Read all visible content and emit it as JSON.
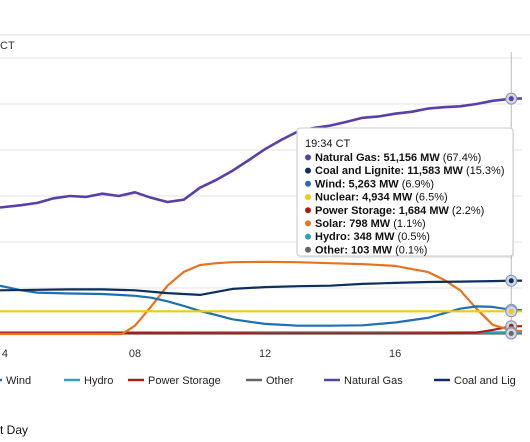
{
  "page": {
    "top_label": "CT",
    "footer": "t Day"
  },
  "tooltip": {
    "time": "19:34 CT",
    "rows": [
      {
        "name": "Natural Gas",
        "value": "51,156 MW",
        "pct": "(67.4%)",
        "color": "#5b3fa8"
      },
      {
        "name": "Coal and Lignite",
        "value": "11,583 MW",
        "pct": "(15.3%)",
        "color": "#0d2f5e"
      },
      {
        "name": "Wind",
        "value": "5,263 MW",
        "pct": "(6.9%)",
        "color": "#1f6fb4"
      },
      {
        "name": "Nuclear",
        "value": "4,934 MW",
        "pct": "(6.5%)",
        "color": "#f2c811"
      },
      {
        "name": "Power Storage",
        "value": "1,684 MW",
        "pct": "(2.2%)",
        "color": "#a3231c"
      },
      {
        "name": "Solar",
        "value": "798 MW",
        "pct": "(1.1%)",
        "color": "#e8731c"
      },
      {
        "name": "Hydro",
        "value": "348 MW",
        "pct": "(0.5%)",
        "color": "#2aa3b8"
      },
      {
        "name": "Other",
        "value": "103 MW",
        "pct": "(0.1%)",
        "color": "#666666"
      }
    ]
  },
  "chart_data": {
    "type": "line",
    "x_ticks": [
      "4",
      "08",
      "12",
      "16"
    ],
    "x_tick_values": [
      4,
      8,
      12,
      16
    ],
    "xlim": [
      3.85,
      19.9
    ],
    "ylim": [
      0,
      60000
    ],
    "grid": true,
    "legend_position": "bottom",
    "legend": [
      {
        "name": "Wind",
        "color": "#1f6fb4"
      },
      {
        "name": "Hydro",
        "color": "#2aa3b8"
      },
      {
        "name": "Power Storage",
        "color": "#a3231c"
      },
      {
        "name": "Other",
        "color": "#666666"
      },
      {
        "name": "Natural Gas",
        "color": "#5b3fa8"
      },
      {
        "name": "Coal and Lig",
        "color": "#0d2f5e"
      }
    ],
    "series": [
      {
        "name": "Natural Gas",
        "color": "#5b3fa8",
        "x": [
          3.85,
          4.5,
          5,
          5.5,
          6,
          6.5,
          7,
          7.5,
          8,
          8.5,
          9,
          9.5,
          10,
          10.5,
          11,
          11.5,
          12,
          12.5,
          13,
          13.5,
          14,
          14.5,
          15,
          15.5,
          16,
          16.5,
          17,
          17.5,
          18,
          18.5,
          19,
          19.57,
          19.9
        ],
        "y": [
          27500,
          28000,
          28500,
          29500,
          30000,
          29800,
          30500,
          30000,
          30800,
          29600,
          28700,
          29200,
          31800,
          33500,
          35500,
          37800,
          40200,
          42200,
          44000,
          44800,
          45300,
          46100,
          47000,
          47300,
          47900,
          48300,
          49000,
          49300,
          49500,
          50000,
          50700,
          51156,
          51200
        ]
      },
      {
        "name": "Coal and Lignite",
        "color": "#0d2f5e",
        "x": [
          3.85,
          5,
          6,
          7,
          8,
          9,
          10,
          11,
          12,
          13,
          14,
          15,
          16,
          17,
          18,
          19,
          19.57,
          19.9
        ],
        "y": [
          9500,
          9600,
          9700,
          9700,
          9500,
          8900,
          8500,
          9800,
          10200,
          10400,
          10500,
          10900,
          11100,
          11300,
          11400,
          11500,
          11583,
          11600
        ]
      },
      {
        "name": "Wind",
        "color": "#1f6fb4",
        "x": [
          3.85,
          4.5,
          5,
          6,
          7,
          8,
          8.5,
          9,
          9.5,
          10,
          10.5,
          11,
          12,
          13,
          14,
          15,
          16,
          17,
          17.5,
          18,
          18.5,
          19,
          19.57,
          19.9
        ],
        "y": [
          10500,
          9500,
          9000,
          8800,
          8700,
          8300,
          7900,
          7100,
          6100,
          5000,
          4100,
          3200,
          2200,
          1800,
          1800,
          1900,
          2500,
          3500,
          4500,
          5500,
          6000,
          5900,
          5263,
          5200
        ]
      },
      {
        "name": "Nuclear",
        "color": "#f2c811",
        "x": [
          3.85,
          19.9
        ],
        "y": [
          4934,
          4934
        ]
      },
      {
        "name": "Solar",
        "color": "#e8731c",
        "x": [
          3.85,
          7.6,
          8.0,
          8.5,
          9.0,
          9.5,
          10,
          10.5,
          11,
          12,
          13,
          14,
          15,
          16,
          17,
          17.5,
          18,
          18.5,
          19,
          19.57,
          19.9
        ],
        "y": [
          0,
          0,
          1800,
          6000,
          10500,
          13500,
          15000,
          15400,
          15600,
          15700,
          15600,
          15400,
          15200,
          14800,
          13500,
          11800,
          9500,
          5500,
          2000,
          798,
          600
        ]
      },
      {
        "name": "Power Storage",
        "color": "#a3231c",
        "x": [
          3.85,
          8,
          12,
          16,
          17.5,
          18.5,
          19.0,
          19.57,
          19.9
        ],
        "y": [
          200,
          200,
          150,
          150,
          200,
          300,
          900,
          1684,
          1700
        ]
      },
      {
        "name": "Hydro",
        "color": "#2aa3b8",
        "x": [
          3.85,
          19.9
        ],
        "y": [
          348,
          348
        ]
      },
      {
        "name": "Other",
        "color": "#666666",
        "x": [
          3.85,
          19.9
        ],
        "y": [
          103,
          103
        ]
      }
    ],
    "hover": {
      "x": 19.57,
      "label": "19:34 CT"
    }
  }
}
